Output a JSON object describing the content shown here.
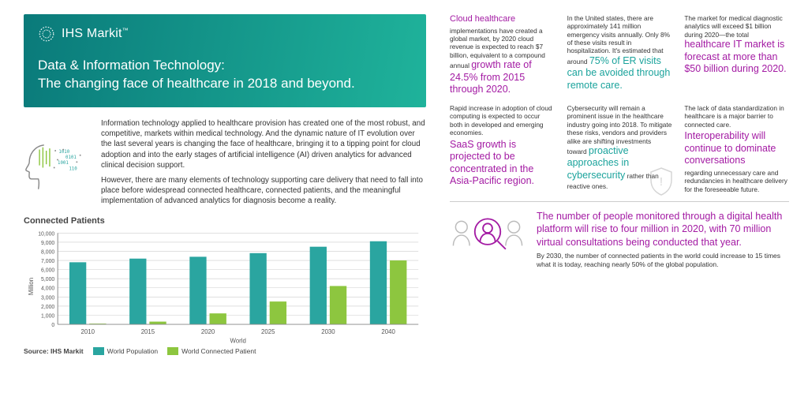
{
  "brand": "IHS Markit",
  "title": "Data & Information Technology:\nThe changing face of healthcare in 2018 and beyond.",
  "intro_p1": "Information technology applied to healthcare provision has created one of the most robust, and competitive, markets within medical technology. And the dynamic nature of IT evolution over the last several years is changing the face of healthcare, bringing it to a tipping point for cloud adoption and into the early stages of artificial intelligence (AI) driven analytics for advanced clinical decision support.",
  "intro_p2": "However, there are many elements of technology supporting care delivery that need to fall into place before widespread connected healthcare, connected patients, and the meaningful implementation of advanced analytics for diagnosis become a reality.",
  "header_gradient_from": "#0a7a7a",
  "header_gradient_to": "#1fb39b",
  "chart": {
    "title": "Connected Patients",
    "ylabel": "Million",
    "xlabel": "World",
    "source": "Source: IHS Markit",
    "legend1": "World Population",
    "legend2": "World Connected Patient",
    "color1": "#2aa5a0",
    "color2": "#8dc63f",
    "grid_color": "#cccccc",
    "years": [
      "2010",
      "2015",
      "2020",
      "2025",
      "2030",
      "2040"
    ],
    "pop": [
      6800,
      7200,
      7400,
      7800,
      8500,
      9100
    ],
    "conn": [
      80,
      300,
      1200,
      2500,
      4200,
      7000
    ],
    "ymax": 10000,
    "ytick": 1000
  },
  "cells": {
    "c1_lead": "Cloud healthcare",
    "c1_body1": "implementations have created a global market, by 2020 cloud revenue is expected to reach $7 billion, equivalent to a compound annual",
    "c1_hl": "growth rate of 24.5% from 2015 through 2020.",
    "c2_body1": "In the United states, there are approximately 141 million emergency visits annually. Only 8% of these visits result in hospitalization. It's estimated that around",
    "c2_hl": "75% of ER visits can be avoided through remote care.",
    "c3_body1": "The market for medical diagnostic analytics will exceed $1 billion during 2020—the total",
    "c3_hl": "healthcare IT market is forecast at more than $50 billion during 2020.",
    "c4_body1": "Rapid increase in adoption of cloud computing is expected to occur both in developed and emerging economies.",
    "c4_hl": "SaaS growth is projected to be concentrated in the Asia-Pacific region.",
    "c5_body1": "Cybersecurity will remain a prominent issue in the healthcare industry going into 2018. To mitigate these risks, vendors and providers alike are shifting investments toward",
    "c5_hl": "proactive approaches in cybersecurity",
    "c5_body2": "rather than reactive ones.",
    "c6_body1": "The lack of data standardization in healthcare is a major barrier to connected care.",
    "c6_hl": "Interoperability will continue to dominate conversations",
    "c6_body2": "regarding unnecessary care and redundancies in healthcare delivery for the foreseeable future."
  },
  "callout_headline": "The number of people monitored through a digital health platform will rise to four million in 2020, with 70 million virtual consultations being conducted that year.",
  "callout_body": "By 2030, the number of connected patients in the world could increase to 15 times what it is today, reaching nearly 50% of the global population.",
  "colors": {
    "purple": "#a31aa3",
    "teal": "#1ba39c"
  }
}
